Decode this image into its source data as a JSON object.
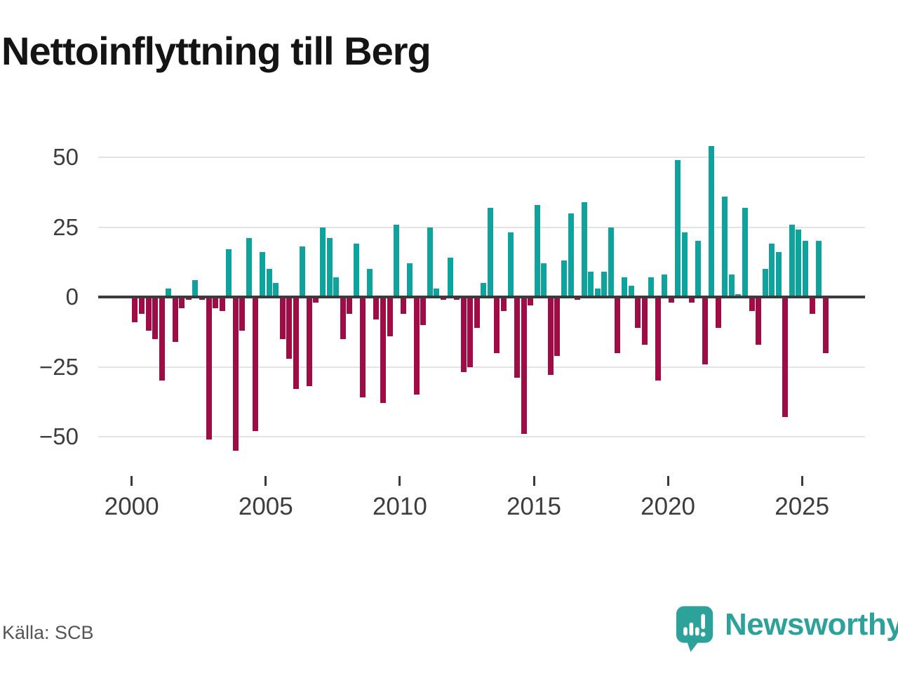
{
  "title": "Nettoinflyttning till Berg",
  "source": "Källa: SCB",
  "brand": {
    "name": "Newsworthy"
  },
  "colors": {
    "positive": "#0ea39c",
    "negative": "#9f0c46",
    "brand_teal": "#2da29b",
    "axis_text": "#3d3d3d",
    "grid": "#e4e4e4",
    "zero_line": "#3b3b3b",
    "title_text": "#141414",
    "source_text": "#555555"
  },
  "chart_data": {
    "type": "bar",
    "title": "Nettoinflyttning till Berg",
    "period": "quarterly",
    "start": "2000 Q1",
    "end": "2025 Q4",
    "values": [
      -9,
      -6,
      -12,
      -15,
      -30,
      3,
      -16,
      -4,
      -1,
      6,
      -1,
      -51,
      -4,
      -5,
      17,
      -55,
      -12,
      21,
      -48,
      16,
      10,
      5,
      -15,
      -22,
      -33,
      18,
      -32,
      -2,
      25,
      21,
      7,
      -15,
      -6,
      19,
      -36,
      10,
      -8,
      -38,
      -14,
      26,
      -6,
      12,
      -35,
      -10,
      25,
      3,
      -1,
      14,
      -1,
      -27,
      -25,
      -11,
      5,
      32,
      -20,
      -5,
      23,
      -29,
      -49,
      -3,
      33,
      12,
      -28,
      -21,
      13,
      30,
      -1,
      34,
      9,
      3,
      9,
      25,
      -20,
      7,
      4,
      -11,
      -17,
      7,
      -30,
      8,
      -2,
      49,
      23,
      -2,
      20,
      -24,
      54,
      -11,
      36,
      8,
      1,
      32,
      -5,
      -17,
      10,
      19,
      16,
      -43,
      26,
      24,
      20,
      -6,
      20,
      -20
    ],
    "y_ticks": [
      {
        "label": "50",
        "value": 50
      },
      {
        "label": "25",
        "value": 25
      },
      {
        "label": "0",
        "value": 0
      },
      {
        "label": "−25",
        "value": -25
      },
      {
        "label": "−50",
        "value": -50
      }
    ],
    "x_ticks": [
      {
        "label": "2000",
        "year": 2000
      },
      {
        "label": "2005",
        "year": 2005
      },
      {
        "label": "2010",
        "year": 2010
      },
      {
        "label": "2015",
        "year": 2015
      },
      {
        "label": "2020",
        "year": 2020
      },
      {
        "label": "2025",
        "year": 2025
      }
    ],
    "ylim": [
      -58,
      57
    ],
    "grid": "horizontal",
    "legend": "none"
  }
}
